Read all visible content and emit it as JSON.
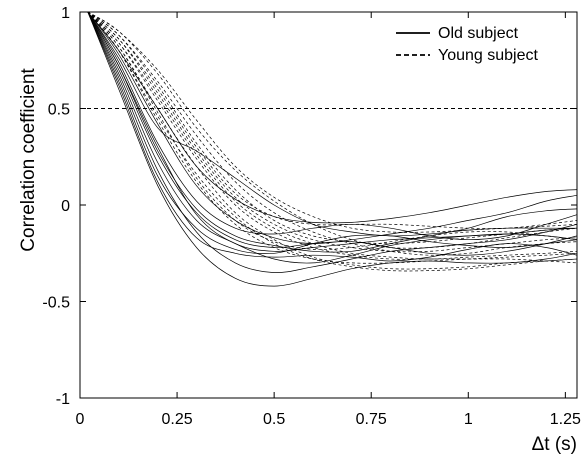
{
  "chart_data": {
    "type": "line",
    "xlabel": "Δt (s)",
    "ylabel": "Correlation coefficient",
    "xlim": [
      0,
      1.28
    ],
    "ylim": [
      -1,
      1
    ],
    "x_ticks": [
      "0",
      "0.25",
      "0.5",
      "0.75",
      "1",
      "1.25"
    ],
    "x_tick_values": [
      0,
      0.25,
      0.5,
      0.75,
      1,
      1.25
    ],
    "y_ticks": [
      "1",
      "0.5",
      "0",
      "-0.5",
      "-1"
    ],
    "y_tick_values": [
      1,
      0.5,
      0,
      -0.5,
      -1
    ],
    "grid": false,
    "reference_line": {
      "y": 0.5,
      "style": "dashed"
    },
    "legend": {
      "position": "top-right",
      "entries": [
        {
          "label": "Old subject",
          "style": "solid"
        },
        {
          "label": "Young subject",
          "style": "dashed"
        }
      ]
    },
    "x": [
      0.02,
      0.1,
      0.2,
      0.3,
      0.4,
      0.5,
      0.6,
      0.7,
      0.8,
      0.9,
      1.0,
      1.1,
      1.2,
      1.28
    ],
    "series": [
      {
        "group": "old",
        "style": "solid",
        "values": [
          1.0,
          0.72,
          0.3,
          -0.05,
          -0.2,
          -0.24,
          -0.22,
          -0.2,
          -0.18,
          -0.17,
          -0.16,
          -0.15,
          -0.13,
          -0.12
        ]
      },
      {
        "group": "old",
        "style": "solid",
        "values": [
          1.0,
          0.66,
          0.18,
          -0.14,
          -0.3,
          -0.35,
          -0.32,
          -0.28,
          -0.24,
          -0.22,
          -0.2,
          -0.18,
          -0.14,
          -0.1
        ]
      },
      {
        "group": "old",
        "style": "solid",
        "values": [
          1.0,
          0.6,
          0.1,
          -0.22,
          -0.38,
          -0.42,
          -0.38,
          -0.33,
          -0.3,
          -0.29,
          -0.3,
          -0.3,
          -0.28,
          -0.25
        ]
      },
      {
        "group": "old",
        "style": "solid",
        "values": [
          1.0,
          0.78,
          0.42,
          0.1,
          -0.08,
          -0.17,
          -0.2,
          -0.18,
          -0.15,
          -0.12,
          -0.08,
          -0.04,
          0.02,
          0.05
        ]
      },
      {
        "group": "old",
        "style": "solid",
        "values": [
          1.0,
          0.8,
          0.5,
          0.2,
          0.03,
          -0.06,
          -0.09,
          -0.09,
          -0.07,
          -0.04,
          0.0,
          0.04,
          0.07,
          0.08
        ]
      },
      {
        "group": "old",
        "style": "solid",
        "values": [
          1.0,
          0.7,
          0.26,
          -0.04,
          -0.18,
          -0.22,
          -0.2,
          -0.19,
          -0.22,
          -0.25,
          -0.26,
          -0.24,
          -0.2,
          -0.16
        ]
      },
      {
        "group": "old",
        "style": "solid",
        "values": [
          1.0,
          0.74,
          0.32,
          0.02,
          -0.12,
          -0.15,
          -0.12,
          -0.1,
          -0.12,
          -0.16,
          -0.18,
          -0.16,
          -0.1,
          -0.05
        ]
      },
      {
        "group": "old",
        "style": "solid",
        "values": [
          1.0,
          0.62,
          0.12,
          -0.17,
          -0.25,
          -0.27,
          -0.26,
          -0.27,
          -0.29,
          -0.27,
          -0.23,
          -0.2,
          -0.22,
          -0.26
        ]
      },
      {
        "group": "old",
        "style": "solid",
        "values": [
          1.0,
          0.76,
          0.4,
          0.28,
          0.14,
          0.0,
          -0.1,
          -0.14,
          -0.16,
          -0.15,
          -0.13,
          -0.12,
          -0.12,
          -0.12
        ]
      },
      {
        "group": "old",
        "style": "solid",
        "values": [
          1.0,
          0.68,
          0.22,
          -0.08,
          -0.2,
          -0.28,
          -0.3,
          -0.26,
          -0.21,
          -0.18,
          -0.16,
          -0.15,
          -0.16,
          -0.18
        ]
      },
      {
        "group": "old",
        "style": "solid",
        "values": [
          1.0,
          0.72,
          0.28,
          -0.02,
          -0.16,
          -0.21,
          -0.24,
          -0.24,
          -0.2,
          -0.16,
          -0.12,
          -0.06,
          -0.03,
          -0.02
        ]
      },
      {
        "group": "old",
        "style": "solid",
        "values": [
          1.0,
          0.64,
          0.15,
          -0.12,
          -0.23,
          -0.25,
          -0.2,
          -0.16,
          -0.16,
          -0.19,
          -0.21,
          -0.22,
          -0.2,
          -0.18
        ]
      },
      {
        "group": "young",
        "style": "dashed",
        "values": [
          1.0,
          0.9,
          0.68,
          0.4,
          0.18,
          0.02,
          -0.1,
          -0.18,
          -0.22,
          -0.22,
          -0.2,
          -0.17,
          -0.14,
          -0.12
        ]
      },
      {
        "group": "young",
        "style": "dashed",
        "values": [
          1.0,
          0.86,
          0.58,
          0.28,
          0.04,
          -0.1,
          -0.18,
          -0.22,
          -0.24,
          -0.24,
          -0.22,
          -0.2,
          -0.18,
          -0.17
        ]
      },
      {
        "group": "young",
        "style": "dashed",
        "values": [
          1.0,
          0.82,
          0.5,
          0.2,
          -0.04,
          -0.18,
          -0.27,
          -0.31,
          -0.33,
          -0.33,
          -0.32,
          -0.3,
          -0.29,
          -0.28
        ]
      },
      {
        "group": "young",
        "style": "dashed",
        "values": [
          1.0,
          0.88,
          0.62,
          0.32,
          0.08,
          -0.08,
          -0.16,
          -0.19,
          -0.2,
          -0.19,
          -0.17,
          -0.15,
          -0.13,
          -0.12
        ]
      },
      {
        "group": "young",
        "style": "dashed",
        "values": [
          1.0,
          0.84,
          0.54,
          0.24,
          0.0,
          -0.14,
          -0.22,
          -0.26,
          -0.28,
          -0.28,
          -0.28,
          -0.28,
          -0.29,
          -0.3
        ]
      },
      {
        "group": "young",
        "style": "dashed",
        "values": [
          1.0,
          0.8,
          0.46,
          0.16,
          -0.06,
          -0.2,
          -0.28,
          -0.32,
          -0.34,
          -0.34,
          -0.33,
          -0.31,
          -0.29,
          -0.28
        ]
      },
      {
        "group": "young",
        "style": "dashed",
        "values": [
          1.0,
          0.86,
          0.6,
          0.3,
          0.06,
          -0.06,
          -0.1,
          -0.1,
          -0.1,
          -0.11,
          -0.12,
          -0.12,
          -0.1,
          -0.08
        ]
      },
      {
        "group": "young",
        "style": "dashed",
        "values": [
          1.0,
          0.82,
          0.48,
          0.14,
          -0.08,
          -0.19,
          -0.23,
          -0.22,
          -0.19,
          -0.16,
          -0.14,
          -0.14,
          -0.16,
          -0.18
        ]
      },
      {
        "group": "young",
        "style": "dashed",
        "values": [
          1.0,
          0.88,
          0.64,
          0.36,
          0.12,
          -0.04,
          -0.14,
          -0.2,
          -0.24,
          -0.26,
          -0.25,
          -0.22,
          -0.2,
          -0.19
        ]
      },
      {
        "group": "young",
        "style": "dashed",
        "values": [
          1.0,
          0.84,
          0.56,
          0.26,
          0.02,
          -0.12,
          -0.2,
          -0.25,
          -0.27,
          -0.28,
          -0.27,
          -0.26,
          -0.25,
          -0.24
        ]
      },
      {
        "group": "young",
        "style": "dashed",
        "values": [
          1.0,
          0.9,
          0.7,
          0.44,
          0.2,
          0.04,
          -0.06,
          -0.12,
          -0.14,
          -0.14,
          -0.13,
          -0.12,
          -0.11,
          -0.1
        ]
      },
      {
        "group": "young",
        "style": "dashed",
        "values": [
          1.0,
          0.8,
          0.44,
          0.12,
          -0.1,
          -0.22,
          -0.28,
          -0.3,
          -0.3,
          -0.29,
          -0.28,
          -0.27,
          -0.26,
          -0.25
        ]
      }
    ]
  }
}
